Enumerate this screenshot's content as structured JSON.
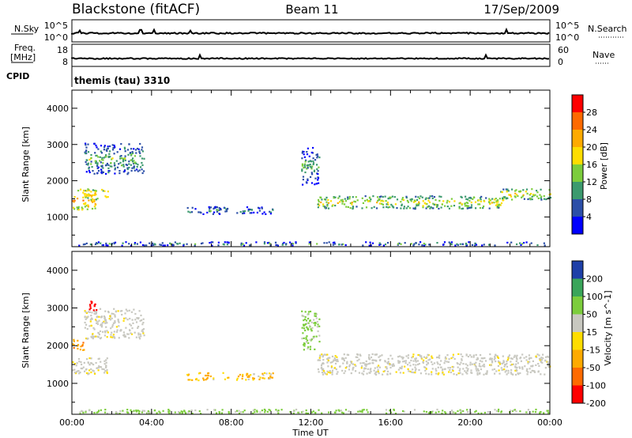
{
  "header": {
    "station": "Blackstone (fitACF)",
    "beam": "Beam 11",
    "date": "17/Sep/2009"
  },
  "status_strip": {
    "left_labels": [
      "N.Sky",
      "Freq.",
      "[MHz]",
      "CPID"
    ],
    "right_labels": [
      "N.Search",
      "Nave"
    ],
    "nsky_ticks": [
      "10^5",
      "10^0"
    ],
    "nsearch_ticks": [
      "10^5",
      "10^0"
    ],
    "freq_ticks": [
      "18",
      "8"
    ],
    "nave_ticks": [
      "60",
      "0"
    ],
    "cpid_text": "themis (tau) 3310"
  },
  "time_axis": {
    "label": "Time UT",
    "ticks": [
      "00:00",
      "04:00",
      "08:00",
      "12:00",
      "16:00",
      "20:00",
      "00:00"
    ]
  },
  "power_colorbar": {
    "label": "Power [dB]",
    "ticks": [
      "28",
      "24",
      "20",
      "16",
      "12",
      "8",
      "4"
    ],
    "colors": [
      "#ff0000",
      "#ff6a00",
      "#ffaa00",
      "#ffdd00",
      "#7ccd3c",
      "#3c9a6e",
      "#2c4fa8",
      "#0000ff"
    ]
  },
  "velocity_colorbar": {
    "label": "Velocity [m s^-1]",
    "ticks": [
      "200",
      "100",
      "50",
      "15",
      "-15",
      "-50",
      "-100",
      "-200"
    ],
    "colors": [
      "#1e3fa8",
      "#3aa55a",
      "#7ccd3c",
      "#c8c8c0",
      "#ffdd00",
      "#ffaa00",
      "#ff6a00",
      "#ff0000"
    ]
  },
  "chart_data": [
    {
      "type": "heatmap",
      "panel": "power",
      "ylabel": "Slant Range [km]",
      "xlabel": "Time UT",
      "xlim_hours": [
        0,
        24
      ],
      "ylim": [
        180,
        4500
      ],
      "yticks": [
        1000,
        2000,
        3000,
        4000
      ],
      "ytick_labels": [
        "1000",
        "2000",
        "3000",
        "4000"
      ],
      "colorbar_label": "Power [dB]",
      "echo_regions": [
        {
          "t0": 0.6,
          "t1": 3.6,
          "r0": 2200,
          "r1": 3050,
          "level": 8
        },
        {
          "t0": 0.0,
          "t1": 1.2,
          "r0": 1200,
          "r1": 1800,
          "level": 18
        },
        {
          "t0": 0.6,
          "t1": 1.8,
          "r0": 1500,
          "r1": 1800,
          "level": 16
        },
        {
          "t0": 5.7,
          "t1": 10.1,
          "r0": 1100,
          "r1": 1300,
          "level": 6
        },
        {
          "t0": 11.5,
          "t1": 12.4,
          "r0": 1900,
          "r1": 2950,
          "level": 6
        },
        {
          "t0": 12.3,
          "t1": 21.8,
          "r0": 1250,
          "r1": 1600,
          "level": 13
        },
        {
          "t0": 21.5,
          "t1": 24.0,
          "r0": 1500,
          "r1": 1800,
          "level": 14
        },
        {
          "t0": 0.3,
          "t1": 24.0,
          "r0": 230,
          "r1": 330,
          "level": 6
        }
      ]
    },
    {
      "type": "heatmap",
      "panel": "velocity",
      "ylabel": "Slant Range [km]",
      "xlabel": "Time UT",
      "xlim_hours": [
        0,
        24
      ],
      "ylim": [
        180,
        4500
      ],
      "yticks": [
        1000,
        2000,
        3000,
        4000
      ],
      "ytick_labels": [
        "1000",
        "2000",
        "3000",
        "4000"
      ],
      "colorbar_label": "Velocity [m s^-1]",
      "echo_regions": [
        {
          "t0": 0.0,
          "t1": 0.6,
          "r0": 1900,
          "r1": 2200,
          "level": -60
        },
        {
          "t0": 0.0,
          "t1": 1.8,
          "r0": 1250,
          "r1": 1700,
          "level": 0
        },
        {
          "t0": 0.6,
          "t1": 3.6,
          "r0": 2200,
          "r1": 3000,
          "level": 0
        },
        {
          "t0": 0.8,
          "t1": 1.2,
          "r0": 2950,
          "r1": 3200,
          "level": -180
        },
        {
          "t0": 5.7,
          "t1": 10.1,
          "r0": 1100,
          "r1": 1300,
          "level": -30
        },
        {
          "t0": 11.5,
          "t1": 12.4,
          "r0": 1900,
          "r1": 2950,
          "level": 40
        },
        {
          "t0": 12.3,
          "t1": 24.0,
          "r0": 1250,
          "r1": 1800,
          "level": 0
        },
        {
          "t0": 0.3,
          "t1": 24.0,
          "r0": 220,
          "r1": 330,
          "level": 40
        }
      ]
    }
  ]
}
